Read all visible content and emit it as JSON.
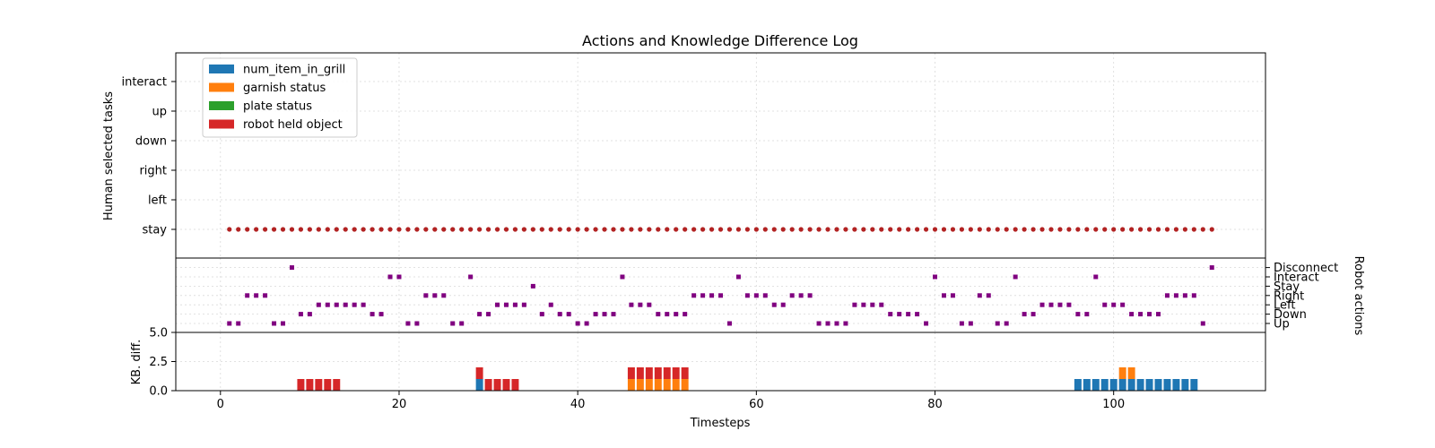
{
  "chart_data": {
    "type": "multi-panel timeline",
    "title": "Actions and Knowledge Difference Log",
    "x_axis": {
      "label": "Timesteps",
      "range": [
        -5,
        117
      ],
      "ticks": [
        0,
        20,
        40,
        60,
        80,
        100
      ]
    },
    "colors": {
      "num_item_in_grill": "#1f77b4",
      "garnish status": "#ff7f0e",
      "plate status": "#2ca02c",
      "robot held object": "#d62728",
      "human_markers": "#b22222",
      "robot_markers": "#800080"
    },
    "legend": {
      "placement": "upper-left",
      "entries": [
        "num_item_in_grill",
        "garnish status",
        "plate status",
        "robot held object"
      ]
    },
    "human_panel": {
      "ylabel": "Human selected tasks",
      "categories": [
        "stay",
        "left",
        "right",
        "down",
        "up",
        "interact"
      ],
      "points": {
        "x_start": 1,
        "x_end": 111,
        "category": "stay"
      }
    },
    "robot_panel": {
      "ylabel": "Robot actions",
      "categories": [
        "Up",
        "Down",
        "Left",
        "Right",
        "Stay",
        "Interact",
        "Disconnect"
      ],
      "actions": [
        "Up",
        "Up",
        "Right",
        "Right",
        "Right",
        "Up",
        "Up",
        "Disconnect",
        "Down",
        "Down",
        "Left",
        "Left",
        "Left",
        "Left",
        "Left",
        "Left",
        "Down",
        "Down",
        "Interact",
        "Interact",
        "Up",
        "Up",
        "Right",
        "Right",
        "Right",
        "Up",
        "Up",
        "Interact",
        "Down",
        "Down",
        "Left",
        "Left",
        "Left",
        "Left",
        "Stay",
        "Down",
        "Left",
        "Down",
        "Down",
        "Up",
        "Up",
        "Down",
        "Down",
        "Down",
        "Interact",
        "Left",
        "Left",
        "Left",
        "Down",
        "Down",
        "Down",
        "Down",
        "Right",
        "Right",
        "Right",
        "Right",
        "Up",
        "Interact",
        "Right",
        "Right",
        "Right",
        "Left",
        "Left",
        "Right",
        "Right",
        "Right",
        "Up",
        "Up",
        "Up",
        "Up",
        "Left",
        "Left",
        "Left",
        "Left",
        "Down",
        "Down",
        "Down",
        "Down",
        "Up",
        "Interact",
        "Right",
        "Right",
        "Up",
        "Up",
        "Right",
        "Right",
        "Up",
        "Up",
        "Interact",
        "Down",
        "Down",
        "Left",
        "Left",
        "Left",
        "Left",
        "Down",
        "Down",
        "Interact",
        "Left",
        "Left",
        "Left",
        "Down",
        "Down",
        "Down",
        "Down",
        "Right",
        "Right",
        "Right",
        "Right",
        "Up",
        "Disconnect"
      ]
    },
    "kb_panel": {
      "ylabel": "KB. diff.",
      "ylim": [
        0,
        5
      ],
      "yticks": [
        "0.0",
        "2.5",
        "5.0"
      ],
      "bars": [
        {
          "t": 9,
          "robot held object": 1
        },
        {
          "t": 10,
          "robot held object": 1
        },
        {
          "t": 11,
          "robot held object": 1
        },
        {
          "t": 12,
          "robot held object": 1
        },
        {
          "t": 13,
          "robot held object": 1
        },
        {
          "t": 29,
          "num_item_in_grill": 1,
          "robot held object": 1
        },
        {
          "t": 30,
          "robot held object": 1
        },
        {
          "t": 31,
          "robot held object": 1
        },
        {
          "t": 32,
          "robot held object": 1
        },
        {
          "t": 33,
          "robot held object": 1
        },
        {
          "t": 46,
          "garnish status": 1,
          "robot held object": 1
        },
        {
          "t": 47,
          "garnish status": 1,
          "robot held object": 1
        },
        {
          "t": 48,
          "garnish status": 1,
          "robot held object": 1
        },
        {
          "t": 49,
          "garnish status": 1,
          "robot held object": 1
        },
        {
          "t": 50,
          "garnish status": 1,
          "robot held object": 1
        },
        {
          "t": 51,
          "garnish status": 1,
          "robot held object": 1
        },
        {
          "t": 52,
          "garnish status": 1,
          "robot held object": 1
        },
        {
          "t": 96,
          "num_item_in_grill": 1
        },
        {
          "t": 97,
          "num_item_in_grill": 1
        },
        {
          "t": 98,
          "num_item_in_grill": 1
        },
        {
          "t": 99,
          "num_item_in_grill": 1
        },
        {
          "t": 100,
          "num_item_in_grill": 1
        },
        {
          "t": 101,
          "num_item_in_grill": 1,
          "garnish status": 1
        },
        {
          "t": 102,
          "num_item_in_grill": 1,
          "garnish status": 1
        },
        {
          "t": 103,
          "num_item_in_grill": 1
        },
        {
          "t": 104,
          "num_item_in_grill": 1
        },
        {
          "t": 105,
          "num_item_in_grill": 1
        },
        {
          "t": 106,
          "num_item_in_grill": 1
        },
        {
          "t": 107,
          "num_item_in_grill": 1
        },
        {
          "t": 108,
          "num_item_in_grill": 1
        },
        {
          "t": 109,
          "num_item_in_grill": 1
        }
      ]
    }
  }
}
